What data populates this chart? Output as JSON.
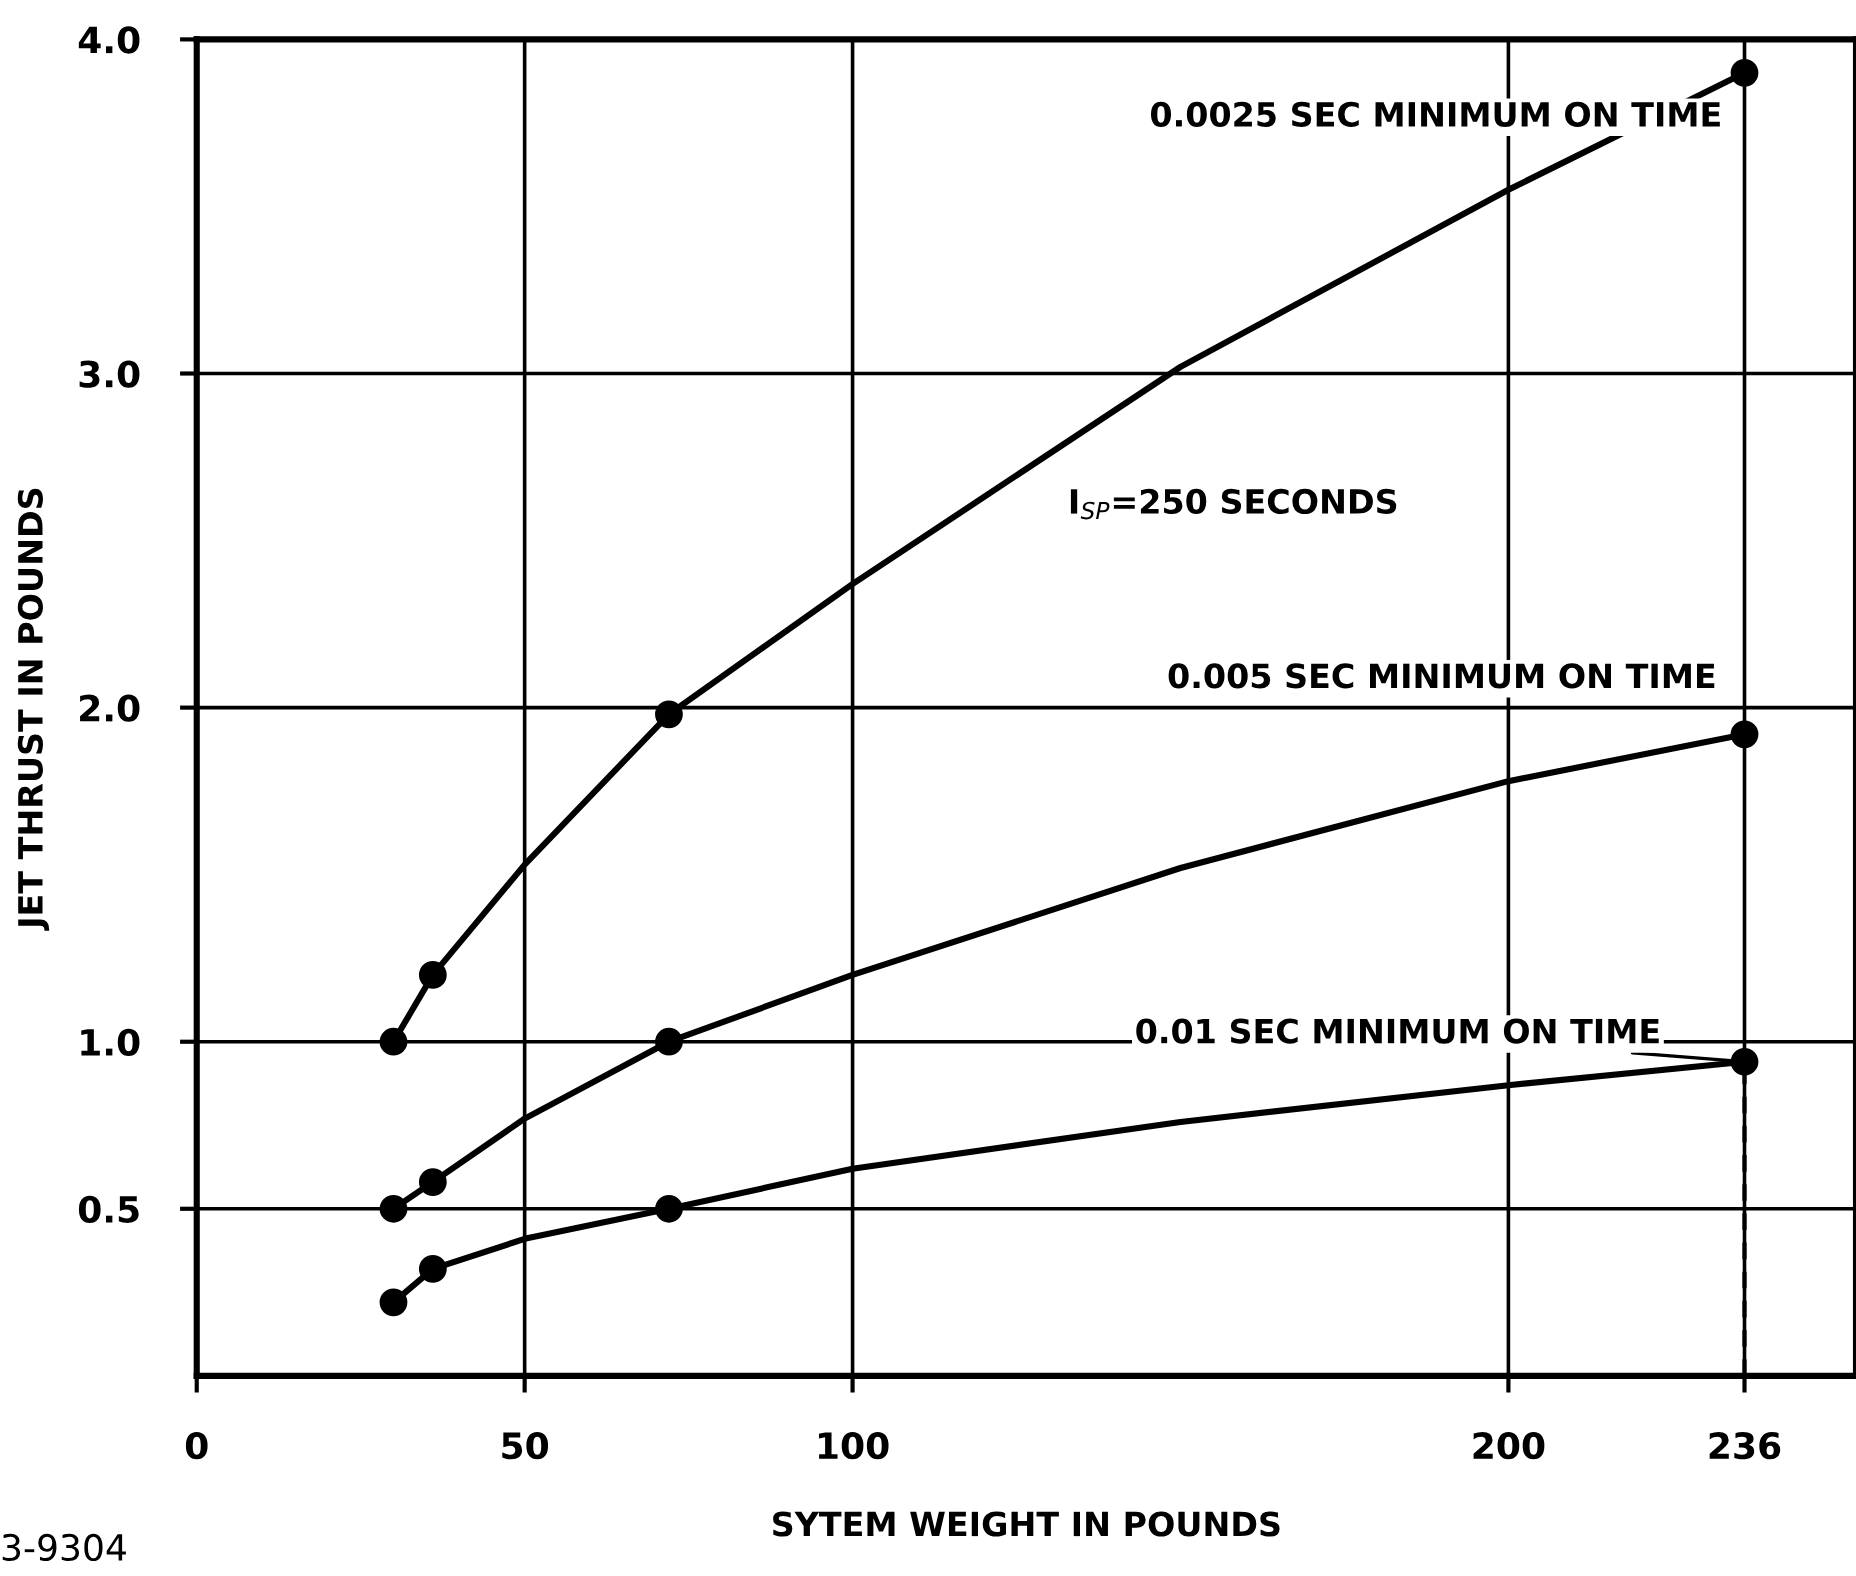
{
  "chart_data": {
    "type": "line",
    "xlabel": "SYTEM WEIGHT IN POUNDS",
    "ylabel": "JET THRUST IN POUNDS",
    "xlim": [
      0,
      253
    ],
    "xticks": [
      0,
      50,
      100,
      200,
      236
    ],
    "ylim": [
      0,
      4.0
    ],
    "yticks": [
      {
        "value": 0.5,
        "label": "0.5"
      },
      {
        "value": 1.0,
        "label": "1.0"
      },
      {
        "value": 2.0,
        "label": "2.0"
      },
      {
        "value": 3.0,
        "label": "3.0"
      },
      {
        "value": 4.0,
        "label": "4.0"
      }
    ],
    "grid": true,
    "legend": false,
    "line_style": "solid",
    "series": [
      {
        "name": "0.0025 SEC MINIMUM ON TIME",
        "color": "#000000",
        "x": [
          30,
          36,
          50,
          72,
          100,
          150,
          200,
          236
        ],
        "values": [
          1.0,
          1.2,
          1.53,
          1.98,
          2.37,
          3.02,
          3.55,
          3.9
        ]
      },
      {
        "name": "0.005 SEC MINIMUM ON TIME",
        "color": "#000000",
        "x": [
          30,
          36,
          50,
          72,
          100,
          150,
          200,
          236
        ],
        "values": [
          0.5,
          0.58,
          0.77,
          1.0,
          1.2,
          1.52,
          1.78,
          1.92
        ]
      },
      {
        "name": "0.01 SEC MINIMUM ON TIME",
        "color": "#000000",
        "x": [
          30,
          36,
          50,
          72,
          100,
          150,
          200,
          236
        ],
        "values": [
          0.22,
          0.32,
          0.41,
          0.5,
          0.62,
          0.76,
          0.87,
          0.94
        ]
      },
      {
        "type": "scatter",
        "color": "#000000",
        "marker": "circle",
        "x": [
          30,
          36,
          72,
          236
        ],
        "values": [
          1.0,
          1.2,
          1.98,
          3.9
        ]
      },
      {
        "type": "scatter",
        "color": "#000000",
        "marker": "circle",
        "x": [
          30,
          36,
          72,
          236
        ],
        "values": [
          0.5,
          0.58,
          1.0,
          1.92
        ]
      },
      {
        "type": "scatter",
        "color": "#000000",
        "marker": "circle",
        "x": [
          30,
          36,
          72,
          236
        ],
        "values": [
          0.22,
          0.32,
          0.5,
          0.94
        ]
      },
      {
        "color": "#000000",
        "x": [
          236,
          236
        ],
        "values": [
          0,
          0.94
        ],
        "marker": "none",
        "line_style": "dashed"
      }
    ],
    "annotations": [
      "I$_{SP}$=250 SECONDS",
      "3-9304"
    ]
  }
}
